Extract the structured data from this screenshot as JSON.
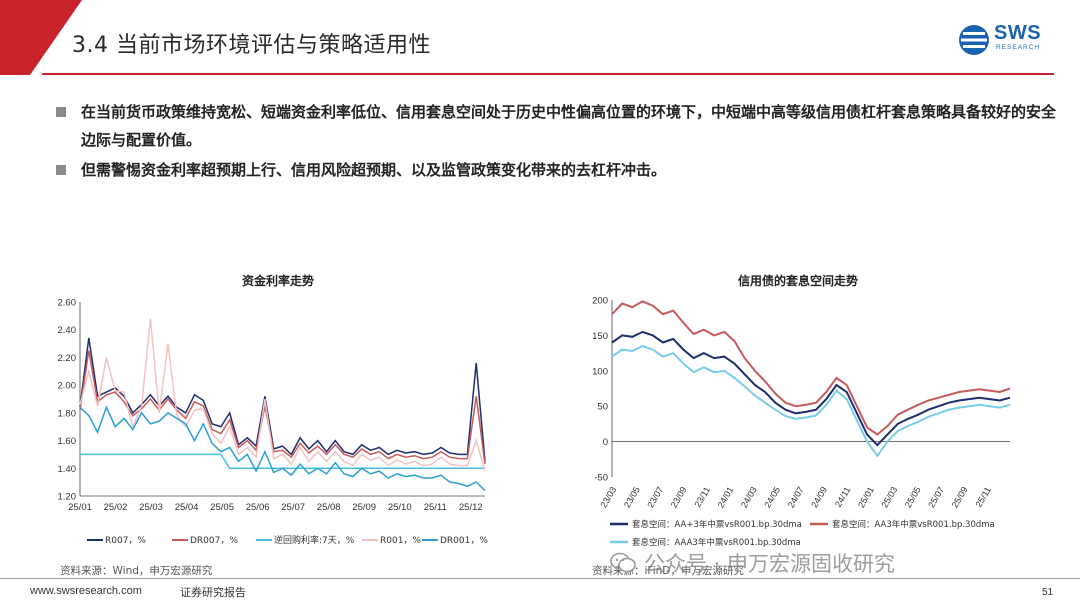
{
  "header": {
    "title": "3.4 当前市场环境评估与策略适用性",
    "logo_text": "SWS",
    "logo_sub": "RESEARCH"
  },
  "bullets": [
    "在当前货币政策维持宽松、短端资金利率低位、信用套息空间处于历史中性偏高位置的环境下，中短端中高等级信用债杠杆套息策略具备较好的安全边际与配置价值。",
    "但需警惕资金利率超预期上行、信用风险超预期、以及监管政策变化带来的去杠杆冲击。"
  ],
  "colors": {
    "brand_red": "#c9242b",
    "brand_blue": "#1b63b0"
  },
  "chart_data": [
    {
      "type": "line",
      "title": "资金利率走势",
      "ylim": [
        1.2,
        2.6
      ],
      "y_ticks": [
        "1.20",
        "1.40",
        "1.60",
        "1.80",
        "2.00",
        "2.20",
        "2.40",
        "2.60"
      ],
      "x_ticks": [
        "25/01",
        "25/02",
        "25/03",
        "25/04",
        "25/05",
        "25/06",
        "25/07",
        "25/08",
        "25/09",
        "25/10",
        "25/11",
        "25/12"
      ],
      "grid": false,
      "legend_position": "bottom",
      "series": [
        {
          "name": "R007，%",
          "color": "#1e2e6e",
          "values": [
            1.84,
            2.34,
            1.92,
            1.95,
            1.98,
            1.92,
            1.8,
            1.86,
            1.93,
            1.85,
            1.92,
            1.84,
            1.8,
            1.93,
            1.89,
            1.72,
            1.7,
            1.8,
            1.57,
            1.62,
            1.56,
            1.92,
            1.54,
            1.56,
            1.5,
            1.62,
            1.54,
            1.6,
            1.52,
            1.6,
            1.52,
            1.5,
            1.57,
            1.53,
            1.55,
            1.5,
            1.53,
            1.51,
            1.52,
            1.5,
            1.51,
            1.55,
            1.51,
            1.5,
            1.5,
            2.16,
            1.45
          ]
        },
        {
          "name": "DR007，%",
          "color": "#c75b5b",
          "values": [
            1.82,
            2.25,
            1.88,
            1.93,
            1.95,
            1.88,
            1.78,
            1.83,
            1.9,
            1.82,
            1.9,
            1.82,
            1.76,
            1.88,
            1.85,
            1.68,
            1.65,
            1.75,
            1.55,
            1.6,
            1.53,
            1.85,
            1.52,
            1.53,
            1.48,
            1.58,
            1.51,
            1.56,
            1.5,
            1.57,
            1.5,
            1.48,
            1.54,
            1.5,
            1.52,
            1.47,
            1.5,
            1.48,
            1.49,
            1.47,
            1.48,
            1.52,
            1.48,
            1.47,
            1.47,
            1.92,
            1.43
          ]
        },
        {
          "name": "逆回购利率:7天，%",
          "color": "#48bde0",
          "values": [
            1.5,
            1.5,
            1.5,
            1.5,
            1.5,
            1.5,
            1.5,
            1.5,
            1.5,
            1.5,
            1.5,
            1.5,
            1.5,
            1.5,
            1.5,
            1.5,
            1.5,
            1.4,
            1.4,
            1.4,
            1.4,
            1.4,
            1.4,
            1.4,
            1.4,
            1.4,
            1.4,
            1.4,
            1.4,
            1.4,
            1.4,
            1.4,
            1.4,
            1.4,
            1.4,
            1.4,
            1.4,
            1.4,
            1.4,
            1.4,
            1.4,
            1.4,
            1.4,
            1.4,
            1.4,
            1.4,
            1.4
          ]
        },
        {
          "name": "R001，%",
          "color": "#f2c2c2",
          "values": [
            1.86,
            2.1,
            1.85,
            2.2,
            1.96,
            1.95,
            1.7,
            1.85,
            2.48,
            1.8,
            2.3,
            1.78,
            1.7,
            1.82,
            1.83,
            1.65,
            1.58,
            1.7,
            1.5,
            1.55,
            1.48,
            1.9,
            1.47,
            1.5,
            1.43,
            1.55,
            1.45,
            1.52,
            1.45,
            1.52,
            1.45,
            1.42,
            1.5,
            1.46,
            1.48,
            1.42,
            1.46,
            1.43,
            1.45,
            1.42,
            1.43,
            1.48,
            1.43,
            1.42,
            1.42,
            1.6,
            1.38
          ]
        },
        {
          "name": "DR001，%",
          "color": "#2a9fd8",
          "values": [
            1.84,
            1.78,
            1.66,
            1.84,
            1.7,
            1.76,
            1.68,
            1.8,
            1.72,
            1.74,
            1.8,
            1.76,
            1.72,
            1.6,
            1.72,
            1.58,
            1.52,
            1.55,
            1.45,
            1.5,
            1.38,
            1.52,
            1.37,
            1.4,
            1.35,
            1.43,
            1.36,
            1.4,
            1.36,
            1.44,
            1.36,
            1.34,
            1.4,
            1.36,
            1.38,
            1.33,
            1.36,
            1.34,
            1.35,
            1.33,
            1.33,
            1.35,
            1.3,
            1.29,
            1.27,
            1.3,
            1.24
          ]
        }
      ],
      "source": "资料来源：Wind，申万宏源研究"
    },
    {
      "type": "line",
      "title": "信用债的套息空间走势",
      "ylim": [
        -50,
        200
      ],
      "y_ticks": [
        "200",
        "150",
        "100",
        "50",
        "0",
        "-50"
      ],
      "x_ticks": [
        "23/03",
        "23/05",
        "23/07",
        "23/09",
        "23/11",
        "24/01",
        "24/03",
        "24/05",
        "24/07",
        "24/09",
        "24/11",
        "25/01",
        "25/03",
        "25/05",
        "25/07",
        "25/09",
        "25/11"
      ],
      "grid": false,
      "legend_position": "bottom",
      "series": [
        {
          "name": "套息空间：AA+3年中票vsR001.bp.30dma",
          "color": "#1e2e6e",
          "values": [
            140,
            150,
            148,
            155,
            150,
            140,
            145,
            130,
            118,
            125,
            118,
            120,
            110,
            95,
            80,
            70,
            55,
            45,
            40,
            42,
            45,
            60,
            80,
            70,
            40,
            10,
            -5,
            10,
            25,
            32,
            38,
            45,
            50,
            55,
            58,
            60,
            62,
            60,
            58,
            62
          ]
        },
        {
          "name": "套息空间：AA3年中票vsR001.bp.30dma",
          "color": "#c75b5b",
          "values": [
            180,
            195,
            190,
            198,
            192,
            180,
            185,
            168,
            152,
            158,
            150,
            155,
            142,
            118,
            100,
            85,
            68,
            55,
            50,
            52,
            55,
            70,
            90,
            80,
            50,
            20,
            10,
            22,
            38,
            45,
            52,
            58,
            62,
            66,
            70,
            72,
            74,
            72,
            70,
            75
          ]
        },
        {
          "name": "套息空间：AAA3年中票vsR001.bp.30dma",
          "color": "#78cde8",
          "values": [
            120,
            130,
            128,
            135,
            130,
            120,
            125,
            110,
            98,
            105,
            98,
            100,
            90,
            78,
            65,
            55,
            45,
            36,
            32,
            34,
            37,
            52,
            72,
            60,
            30,
            0,
            -20,
            0,
            15,
            22,
            28,
            35,
            40,
            45,
            48,
            50,
            52,
            50,
            48,
            52
          ]
        }
      ],
      "source": "资料来源：iFinD，申万宏源研究"
    }
  ],
  "footer": {
    "url": "www.swsresearch.com",
    "report": "证券研究报告",
    "page": "51"
  },
  "watermark": {
    "text": "公众号 · 申万宏源固收研究"
  }
}
